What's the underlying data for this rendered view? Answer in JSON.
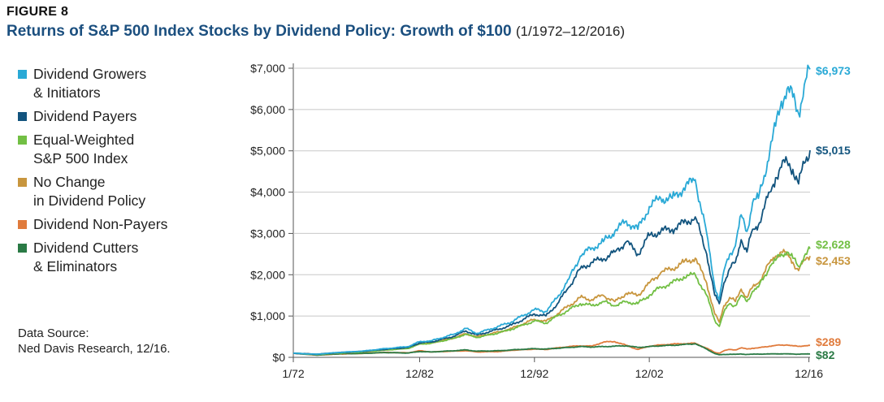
{
  "figure_label": "FIGURE 8",
  "title_main": "Returns of S&P 500 Index Stocks by Dividend Policy: Growth of $100",
  "title_sub": "(1/1972–12/2016)",
  "source_line1": "Data Source:",
  "source_line2": "Ned Davis Research, 12/16.",
  "chart_data": {
    "type": "line",
    "title": "Returns of S&P 500 Index Stocks by Dividend Policy: Growth of $100 (1/1972–12/2016)",
    "xlabel": "",
    "ylabel": "",
    "x_range": [
      1972,
      2017
    ],
    "ylim": [
      0,
      7000
    ],
    "y_ticks": [
      0,
      1000,
      2000,
      3000,
      4000,
      5000,
      6000,
      7000
    ],
    "y_tick_labels": [
      "$0",
      "$1,000",
      "$2,000",
      "$3,000",
      "$4,000",
      "$5,000",
      "$6,000",
      "$7,000"
    ],
    "x_ticks": [
      1972,
      1983,
      1993,
      2003,
      2016.9
    ],
    "x_tick_labels": [
      "1/72",
      "12/82",
      "12/92",
      "12/02",
      "12/16"
    ],
    "grid": "horizontal",
    "series": [
      {
        "name": "Dividend Growers & Initiators",
        "legend_line1": "Dividend Growers",
        "legend_line2": "& Initiators",
        "color": "#29a9d6",
        "end_label": "$6,973",
        "points": [
          [
            1972,
            100
          ],
          [
            1974,
            75
          ],
          [
            1976,
            120
          ],
          [
            1978,
            150
          ],
          [
            1980,
            210
          ],
          [
            1982,
            260
          ],
          [
            1983,
            380
          ],
          [
            1984,
            400
          ],
          [
            1986,
            560
          ],
          [
            1987,
            700
          ],
          [
            1988,
            580
          ],
          [
            1990,
            760
          ],
          [
            1991,
            860
          ],
          [
            1993,
            1160
          ],
          [
            1994,
            1110
          ],
          [
            1995,
            1450
          ],
          [
            1996,
            1900
          ],
          [
            1997,
            2450
          ],
          [
            1998,
            2650
          ],
          [
            1999,
            2800
          ],
          [
            2000,
            3050
          ],
          [
            2001,
            3300
          ],
          [
            2002,
            3100
          ],
          [
            2003,
            3650
          ],
          [
            2004,
            3850
          ],
          [
            2005,
            3850
          ],
          [
            2006,
            4100
          ],
          [
            2007,
            4300
          ],
          [
            2008,
            3000
          ],
          [
            2008.7,
            1700
          ],
          [
            2009.1,
            1400
          ],
          [
            2009.5,
            2100
          ],
          [
            2010,
            2500
          ],
          [
            2010.5,
            2700
          ],
          [
            2011,
            3450
          ],
          [
            2011.5,
            3050
          ],
          [
            2012,
            3750
          ],
          [
            2012.5,
            3850
          ],
          [
            2013,
            4400
          ],
          [
            2013.5,
            5000
          ],
          [
            2014,
            5600
          ],
          [
            2014.5,
            6200
          ],
          [
            2015,
            6500
          ],
          [
            2015.5,
            6300
          ],
          [
            2016,
            5900
          ],
          [
            2016.5,
            6600
          ],
          [
            2017,
            6973
          ]
        ]
      },
      {
        "name": "Dividend Payers",
        "legend_line1": "Dividend Payers",
        "legend_line2": "",
        "color": "#12547e",
        "end_label": "$5,015",
        "points": [
          [
            1972,
            100
          ],
          [
            1974,
            75
          ],
          [
            1976,
            115
          ],
          [
            1978,
            145
          ],
          [
            1980,
            195
          ],
          [
            1982,
            240
          ],
          [
            1983,
            350
          ],
          [
            1984,
            370
          ],
          [
            1986,
            510
          ],
          [
            1987,
            640
          ],
          [
            1988,
            540
          ],
          [
            1990,
            690
          ],
          [
            1991,
            780
          ],
          [
            1993,
            1050
          ],
          [
            1994,
            1000
          ],
          [
            1995,
            1300
          ],
          [
            1996,
            1700
          ],
          [
            1997,
            2150
          ],
          [
            1998,
            2300
          ],
          [
            1999,
            2380
          ],
          [
            2000,
            2550
          ],
          [
            2001,
            2800
          ],
          [
            2002,
            2500
          ],
          [
            2003,
            2950
          ],
          [
            2004,
            3050
          ],
          [
            2005,
            3100
          ],
          [
            2006,
            3250
          ],
          [
            2007,
            3400
          ],
          [
            2008,
            2500
          ],
          [
            2008.7,
            1500
          ],
          [
            2009.1,
            1300
          ],
          [
            2009.5,
            1800
          ],
          [
            2010,
            2150
          ],
          [
            2010.5,
            2300
          ],
          [
            2011,
            2850
          ],
          [
            2011.5,
            2550
          ],
          [
            2012,
            3100
          ],
          [
            2012.5,
            3200
          ],
          [
            2013,
            3600
          ],
          [
            2013.5,
            4000
          ],
          [
            2014,
            4350
          ],
          [
            2014.5,
            4600
          ],
          [
            2015,
            4750
          ],
          [
            2015.5,
            4550
          ],
          [
            2016,
            4200
          ],
          [
            2016.5,
            4700
          ],
          [
            2017,
            5015
          ]
        ]
      },
      {
        "name": "Equal-Weighted S&P 500 Index",
        "legend_line1": "Equal-Weighted",
        "legend_line2": "S&P 500 Index",
        "color": "#72bf44",
        "end_label": "$2,628",
        "points": [
          [
            1972,
            100
          ],
          [
            1974,
            70
          ],
          [
            1976,
            105
          ],
          [
            1978,
            130
          ],
          [
            1980,
            175
          ],
          [
            1982,
            215
          ],
          [
            1983,
            320
          ],
          [
            1984,
            340
          ],
          [
            1986,
            460
          ],
          [
            1987,
            560
          ],
          [
            1988,
            480
          ],
          [
            1990,
            600
          ],
          [
            1991,
            680
          ],
          [
            1993,
            880
          ],
          [
            1994,
            830
          ],
          [
            1995,
            1000
          ],
          [
            1996,
            1150
          ],
          [
            1997,
            1300
          ],
          [
            1998,
            1250
          ],
          [
            1999,
            1350
          ],
          [
            2000,
            1250
          ],
          [
            2001,
            1350
          ],
          [
            2002,
            1300
          ],
          [
            2003,
            1500
          ],
          [
            2004,
            1700
          ],
          [
            2005,
            1800
          ],
          [
            2006,
            1950
          ],
          [
            2007,
            2000
          ],
          [
            2008,
            1500
          ],
          [
            2008.7,
            900
          ],
          [
            2009.1,
            750
          ],
          [
            2009.5,
            1100
          ],
          [
            2010,
            1300
          ],
          [
            2010.5,
            1250
          ],
          [
            2011,
            1500
          ],
          [
            2011.5,
            1350
          ],
          [
            2012,
            1600
          ],
          [
            2012.5,
            1700
          ],
          [
            2013,
            1950
          ],
          [
            2013.5,
            2200
          ],
          [
            2014,
            2350
          ],
          [
            2014.5,
            2500
          ],
          [
            2015,
            2550
          ],
          [
            2015.5,
            2400
          ],
          [
            2016,
            2200
          ],
          [
            2016.5,
            2450
          ],
          [
            2017,
            2628
          ]
        ]
      },
      {
        "name": "No Change in Dividend Policy",
        "legend_line1": "No Change",
        "legend_line2": "in Dividend Policy",
        "color": "#c8963e",
        "end_label": "$2,453",
        "points": [
          [
            1972,
            100
          ],
          [
            1974,
            70
          ],
          [
            1976,
            105
          ],
          [
            1978,
            130
          ],
          [
            1980,
            180
          ],
          [
            1982,
            225
          ],
          [
            1983,
            330
          ],
          [
            1984,
            350
          ],
          [
            1986,
            470
          ],
          [
            1987,
            570
          ],
          [
            1988,
            500
          ],
          [
            1990,
            620
          ],
          [
            1991,
            700
          ],
          [
            1993,
            920
          ],
          [
            1994,
            870
          ],
          [
            1995,
            1050
          ],
          [
            1996,
            1250
          ],
          [
            1997,
            1450
          ],
          [
            1998,
            1400
          ],
          [
            1999,
            1500
          ],
          [
            2000,
            1350
          ],
          [
            2001,
            1550
          ],
          [
            2002,
            1500
          ],
          [
            2003,
            1800
          ],
          [
            2004,
            2050
          ],
          [
            2005,
            2150
          ],
          [
            2006,
            2300
          ],
          [
            2007,
            2400
          ],
          [
            2008,
            1800
          ],
          [
            2008.7,
            1050
          ],
          [
            2009.1,
            850
          ],
          [
            2009.5,
            1250
          ],
          [
            2010,
            1450
          ],
          [
            2010.5,
            1350
          ],
          [
            2011,
            1650
          ],
          [
            2011.5,
            1450
          ],
          [
            2012,
            1700
          ],
          [
            2012.5,
            1800
          ],
          [
            2013,
            2050
          ],
          [
            2013.5,
            2300
          ],
          [
            2014,
            2450
          ],
          [
            2014.5,
            2550
          ],
          [
            2015,
            2500
          ],
          [
            2015.5,
            2300
          ],
          [
            2016,
            2100
          ],
          [
            2016.5,
            2350
          ],
          [
            2017,
            2453
          ]
        ]
      },
      {
        "name": "Dividend Non-Payers",
        "legend_line1": "Dividend Non-Payers",
        "legend_line2": "",
        "color": "#e07b3c",
        "end_label": "$289",
        "points": [
          [
            1972,
            100
          ],
          [
            1974,
            55
          ],
          [
            1976,
            80
          ],
          [
            1978,
            95
          ],
          [
            1980,
            120
          ],
          [
            1982,
            110
          ],
          [
            1983,
            160
          ],
          [
            1984,
            130
          ],
          [
            1986,
            150
          ],
          [
            1987,
            160
          ],
          [
            1988,
            130
          ],
          [
            1990,
            140
          ],
          [
            1991,
            170
          ],
          [
            1993,
            200
          ],
          [
            1994,
            190
          ],
          [
            1995,
            230
          ],
          [
            1996,
            260
          ],
          [
            1997,
            280
          ],
          [
            1998,
            270
          ],
          [
            1999,
            370
          ],
          [
            2000,
            380
          ],
          [
            2001,
            290
          ],
          [
            2002,
            190
          ],
          [
            2003,
            270
          ],
          [
            2004,
            300
          ],
          [
            2005,
            320
          ],
          [
            2006,
            330
          ],
          [
            2007,
            340
          ],
          [
            2008,
            220
          ],
          [
            2008.7,
            120
          ],
          [
            2009.1,
            100
          ],
          [
            2009.5,
            160
          ],
          [
            2010,
            190
          ],
          [
            2010.5,
            180
          ],
          [
            2011,
            230
          ],
          [
            2011.5,
            200
          ],
          [
            2012,
            220
          ],
          [
            2012.5,
            230
          ],
          [
            2013,
            250
          ],
          [
            2013.5,
            270
          ],
          [
            2014,
            290
          ],
          [
            2014.5,
            295
          ],
          [
            2015,
            300
          ],
          [
            2015.5,
            280
          ],
          [
            2016,
            265
          ],
          [
            2016.5,
            280
          ],
          [
            2017,
            289
          ]
        ]
      },
      {
        "name": "Dividend Cutters & Eliminators",
        "legend_line1": "Dividend Cutters",
        "legend_line2": "& Eliminators",
        "color": "#2a7a45",
        "end_label": "$82",
        "points": [
          [
            1972,
            100
          ],
          [
            1974,
            55
          ],
          [
            1976,
            85
          ],
          [
            1978,
            95
          ],
          [
            1980,
            115
          ],
          [
            1982,
            105
          ],
          [
            1983,
            140
          ],
          [
            1984,
            130
          ],
          [
            1986,
            160
          ],
          [
            1987,
            180
          ],
          [
            1988,
            150
          ],
          [
            1990,
            160
          ],
          [
            1991,
            180
          ],
          [
            1993,
            210
          ],
          [
            1994,
            200
          ],
          [
            1995,
            220
          ],
          [
            1996,
            240
          ],
          [
            1997,
            260
          ],
          [
            1998,
            250
          ],
          [
            1999,
            260
          ],
          [
            2000,
            270
          ],
          [
            2001,
            280
          ],
          [
            2002,
            240
          ],
          [
            2003,
            260
          ],
          [
            2004,
            280
          ],
          [
            2005,
            290
          ],
          [
            2006,
            310
          ],
          [
            2007,
            330
          ],
          [
            2008,
            200
          ],
          [
            2008.7,
            90
          ],
          [
            2009.1,
            60
          ],
          [
            2009.5,
            70
          ],
          [
            2010,
            75
          ],
          [
            2010.5,
            72
          ],
          [
            2011,
            80
          ],
          [
            2011.5,
            70
          ],
          [
            2012,
            75
          ],
          [
            2012.5,
            78
          ],
          [
            2013,
            80
          ],
          [
            2013.5,
            82
          ],
          [
            2014,
            85
          ],
          [
            2014.5,
            85
          ],
          [
            2015,
            84
          ],
          [
            2015.5,
            80
          ],
          [
            2016,
            76
          ],
          [
            2016.5,
            80
          ],
          [
            2017,
            82
          ]
        ]
      }
    ]
  }
}
